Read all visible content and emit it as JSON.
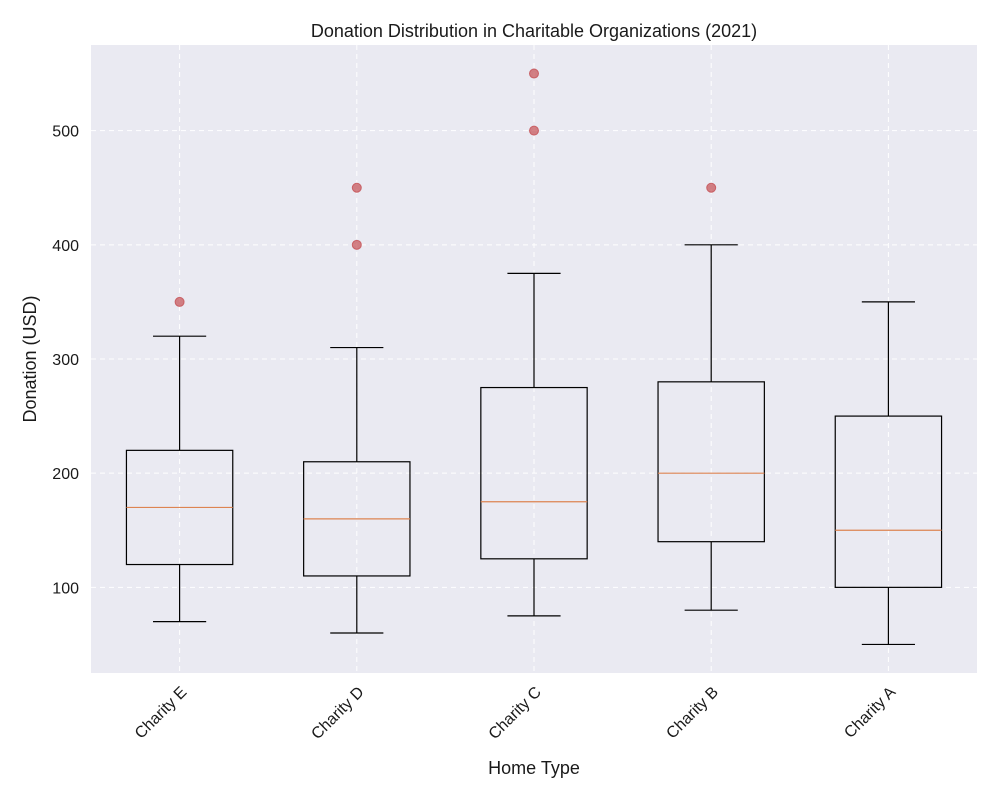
{
  "chart_data": {
    "type": "box",
    "title": "Donation Distribution in Charitable Organizations (2021)",
    "xlabel": "Home Type",
    "ylabel": "Donation (USD)",
    "ylim": [
      25,
      575
    ],
    "yticks": [
      100,
      200,
      300,
      400,
      500
    ],
    "grid": true,
    "categories": [
      "Charity E",
      "Charity D",
      "Charity C",
      "Charity B",
      "Charity A"
    ],
    "boxes": [
      {
        "whisker_low": 70,
        "q1": 120,
        "median": 170,
        "q3": 220,
        "whisker_high": 320,
        "outliers": [
          350
        ]
      },
      {
        "whisker_low": 60,
        "q1": 110,
        "median": 160,
        "q3": 210,
        "whisker_high": 310,
        "outliers": [
          400,
          450
        ]
      },
      {
        "whisker_low": 75,
        "q1": 125,
        "median": 175,
        "q3": 275,
        "whisker_high": 375,
        "outliers": [
          500,
          550
        ]
      },
      {
        "whisker_low": 80,
        "q1": 140,
        "median": 200,
        "q3": 280,
        "whisker_high": 400,
        "outliers": [
          450
        ]
      },
      {
        "whisker_low": 50,
        "q1": 100,
        "median": 150,
        "q3": 250,
        "whisker_high": 350,
        "outliers": []
      }
    ],
    "colors": {
      "background": "#eaeaf2",
      "grid": "#ffffff",
      "box": "#000000",
      "median": "#dd8452",
      "outlier": "#c44e52"
    }
  }
}
